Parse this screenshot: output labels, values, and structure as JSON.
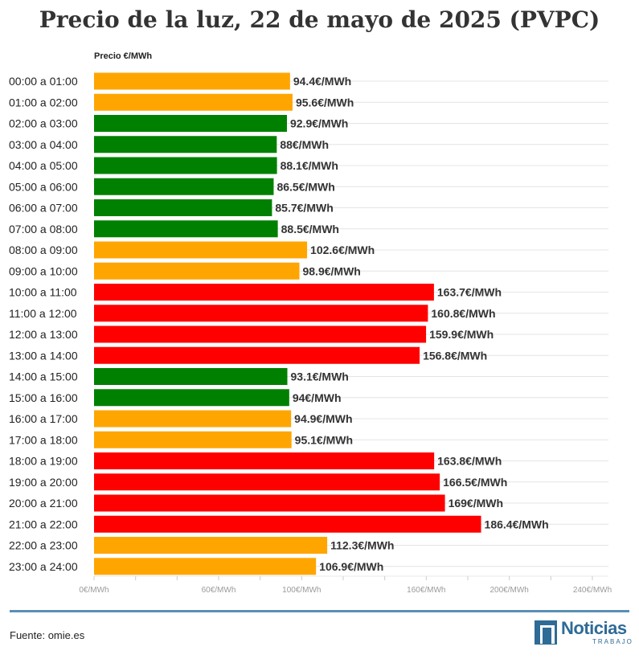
{
  "chart_data": {
    "type": "bar",
    "orientation": "horizontal",
    "title": "Precio de la luz, 22 de mayo de 2025 (PVPC)",
    "ylabel": "Precio €/MWh",
    "xlim": [
      0,
      240
    ],
    "xticks": [
      {
        "value": 0,
        "label": "0€/MWh"
      },
      {
        "value": 60,
        "label": "60€/MWh"
      },
      {
        "value": 100,
        "label": "100€/MWh"
      },
      {
        "value": 160,
        "label": "160€/MWh"
      },
      {
        "value": 200,
        "label": "200€/MWh"
      },
      {
        "value": 240,
        "label": "240€/MWh"
      }
    ],
    "grid": true,
    "unit_suffix": "€/MWh",
    "colors": {
      "low": "#008000",
      "mid": "#FFA500",
      "high": "#FF0000"
    },
    "categories": [
      "00:00 a 01:00",
      "01:00 a 02:00",
      "02:00 a 03:00",
      "03:00 a 04:00",
      "04:00 a 05:00",
      "05:00 a 06:00",
      "06:00 a 07:00",
      "07:00 a 08:00",
      "08:00 a 09:00",
      "09:00 a 10:00",
      "10:00 a 11:00",
      "11:00 a 12:00",
      "12:00 a 13:00",
      "13:00 a 14:00",
      "14:00 a 15:00",
      "15:00 a 16:00",
      "16:00 a 17:00",
      "17:00 a 18:00",
      "18:00 a 19:00",
      "19:00 a 20:00",
      "20:00 a 21:00",
      "21:00 a 22:00",
      "22:00 a 23:00",
      "23:00 a 24:00"
    ],
    "values": [
      94.4,
      95.6,
      92.9,
      88,
      88.1,
      86.5,
      85.7,
      88.5,
      102.6,
      98.9,
      163.7,
      160.8,
      159.9,
      156.8,
      93.1,
      94,
      94.9,
      95.1,
      163.8,
      166.5,
      169,
      186.4,
      112.3,
      106.9
    ],
    "levels": [
      "mid",
      "mid",
      "low",
      "low",
      "low",
      "low",
      "low",
      "low",
      "mid",
      "mid",
      "high",
      "high",
      "high",
      "high",
      "low",
      "low",
      "mid",
      "mid",
      "high",
      "high",
      "high",
      "high",
      "mid",
      "mid"
    ]
  },
  "footer": {
    "source": "Fuente: omie.es",
    "logo_word": "Noticias",
    "logo_sub": "TRABAJO"
  }
}
